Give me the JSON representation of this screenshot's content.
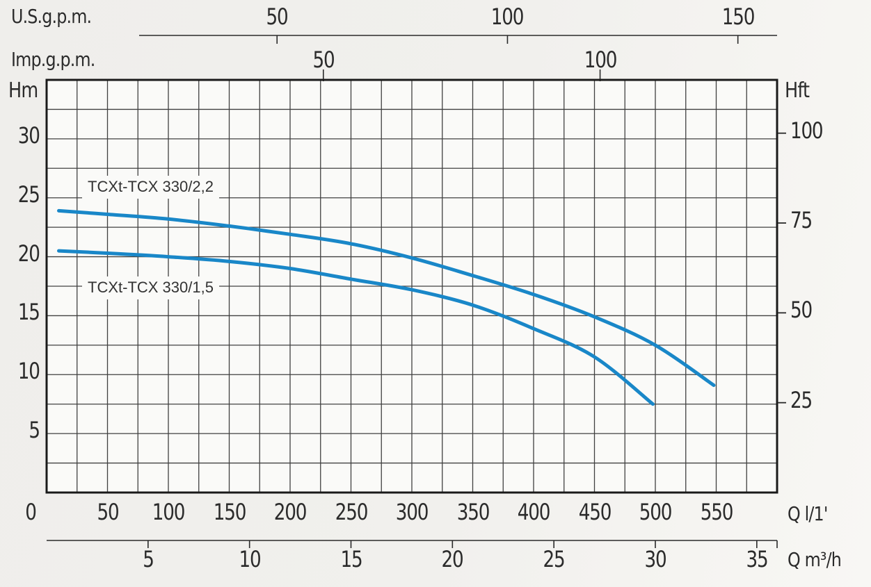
{
  "axes": {
    "us_gpm": {
      "label": "U.S.g.p.m.",
      "ticks": [
        50,
        100,
        150
      ]
    },
    "imp_gpm": {
      "label": "Imp.g.p.m.",
      "ticks": [
        50,
        100
      ]
    },
    "h_m": {
      "label": "Hm",
      "ticks": [
        5,
        10,
        15,
        20,
        25,
        30
      ],
      "min": 0,
      "max": 35,
      "grid_step": 2.5
    },
    "h_ft": {
      "label": "Hft",
      "ticks": [
        25,
        50,
        75,
        100
      ]
    },
    "q_l1": {
      "label": "Q l/1'",
      "ticks": [
        0,
        50,
        100,
        150,
        200,
        250,
        300,
        350,
        400,
        450,
        500,
        550
      ],
      "min": 0,
      "max": 600,
      "grid_step": 25
    },
    "q_m3h": {
      "label": "Q m³/h",
      "ticks": [
        5,
        10,
        15,
        20,
        25,
        30,
        35
      ]
    }
  },
  "chart_data": {
    "type": "line",
    "x_unit": "l/1' (litres per minute)",
    "y_unit": "H m (head, metres)",
    "x_range": [
      0,
      600
    ],
    "y_range": [
      0,
      35
    ],
    "grid": "on",
    "series": [
      {
        "name": "TCXt-TCX 330/2,2",
        "points_q_l1_vs_h_m": [
          [
            10,
            23.9
          ],
          [
            50,
            23.6
          ],
          [
            100,
            23.2
          ],
          [
            150,
            22.6
          ],
          [
            200,
            21.9
          ],
          [
            250,
            21.1
          ],
          [
            300,
            19.9
          ],
          [
            350,
            18.4
          ],
          [
            400,
            16.8
          ],
          [
            450,
            14.9
          ],
          [
            500,
            12.5
          ],
          [
            548,
            9.1
          ]
        ]
      },
      {
        "name": "TCXt-TCX 330/1,5",
        "points_q_l1_vs_h_m": [
          [
            10,
            20.5
          ],
          [
            50,
            20.3
          ],
          [
            100,
            20.0
          ],
          [
            150,
            19.6
          ],
          [
            200,
            19.0
          ],
          [
            250,
            18.1
          ],
          [
            300,
            17.2
          ],
          [
            350,
            15.9
          ],
          [
            400,
            13.9
          ],
          [
            450,
            11.5
          ],
          [
            498,
            7.5
          ]
        ]
      }
    ]
  },
  "colors": {
    "curve": "#1987c8",
    "grid": "#404040",
    "border": "#1a1a1a",
    "axis_line": "#2a2a2a",
    "text": "#2b2b2b",
    "chart_bg": "#fafaf8"
  }
}
